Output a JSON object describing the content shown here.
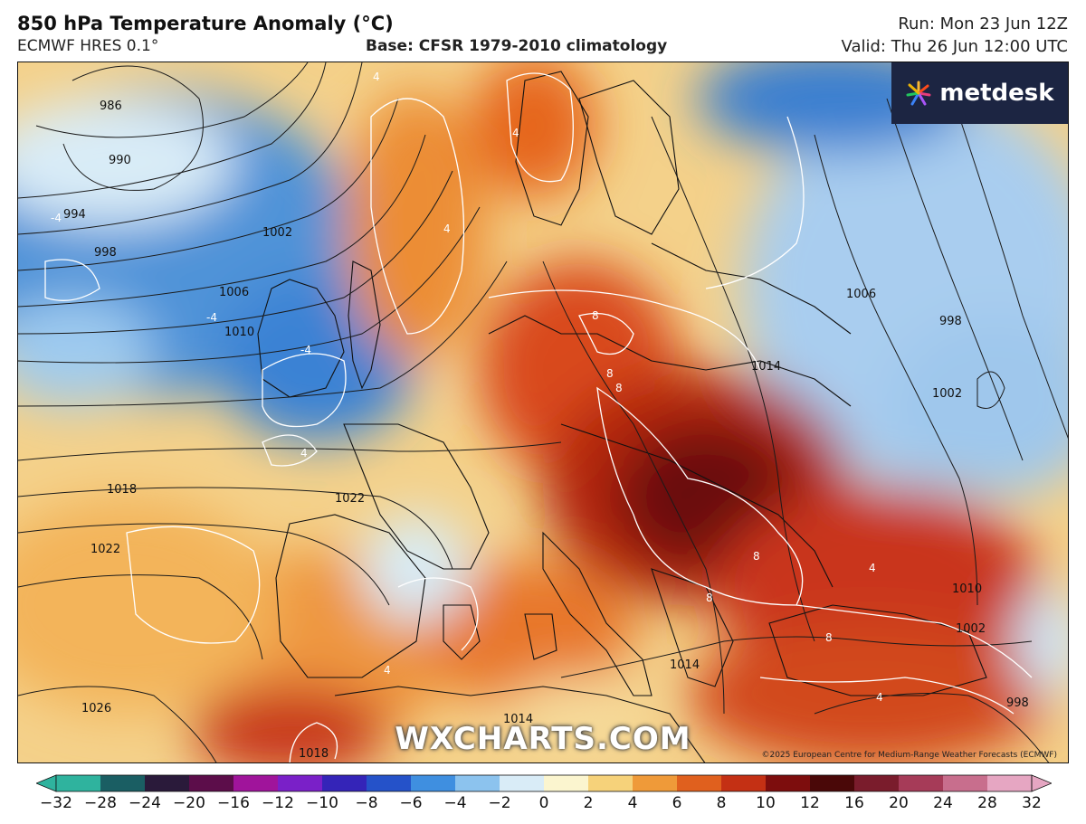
{
  "header": {
    "title": "850 hPa Temperature Anomaly (°C)",
    "model": "ECMWF HRES 0.1°",
    "base": "Base: CFSR 1979-2010 climatology",
    "run": "Run: Mon 23 Jun 12Z",
    "valid": "Valid: Thu 26 Jun 12:00 UTC"
  },
  "branding": {
    "logo_text": "metdesk",
    "watermark": "WXCHARTS.COM",
    "copyright": "©2025 European Centre for Medium-Range Weather Forecasts (ECMWF)"
  },
  "isobars": {
    "labels": [
      "986",
      "990",
      "994",
      "998",
      "1002",
      "1006",
      "1010",
      "1014",
      "1018",
      "1022",
      "1026",
      "1006",
      "998",
      "1002",
      "1014",
      "1014",
      "1010",
      "1002",
      "998",
      "1018",
      "1022"
    ]
  },
  "anomaly_contours": {
    "labels": [
      "4",
      "4",
      "4",
      "-4",
      "-4",
      "-4",
      "8",
      "8",
      "8",
      "8",
      "8",
      "8",
      "4",
      "4",
      "4",
      "4"
    ]
  },
  "colorbar": {
    "ticks": [
      "−32",
      "−28",
      "−24",
      "−20",
      "−16",
      "−12",
      "−10",
      "−8",
      "−6",
      "−4",
      "−2",
      "0",
      "2",
      "4",
      "6",
      "8",
      "10",
      "12",
      "16",
      "20",
      "24",
      "28",
      "32"
    ],
    "colors": [
      "#2fb39e",
      "#1a5e63",
      "#2a1a3a",
      "#5c0d4a",
      "#a0149b",
      "#7a20c8",
      "#3424b8",
      "#2552c9",
      "#3f8fe0",
      "#8cc3ee",
      "#d9ecf7",
      "#fbf5cf",
      "#f6d27a",
      "#ef9a39",
      "#e0601e",
      "#c43014",
      "#7d0d0d",
      "#4a0808",
      "#7a1c2c",
      "#a63b58",
      "#c86e8d",
      "#e6a6c2"
    ]
  }
}
